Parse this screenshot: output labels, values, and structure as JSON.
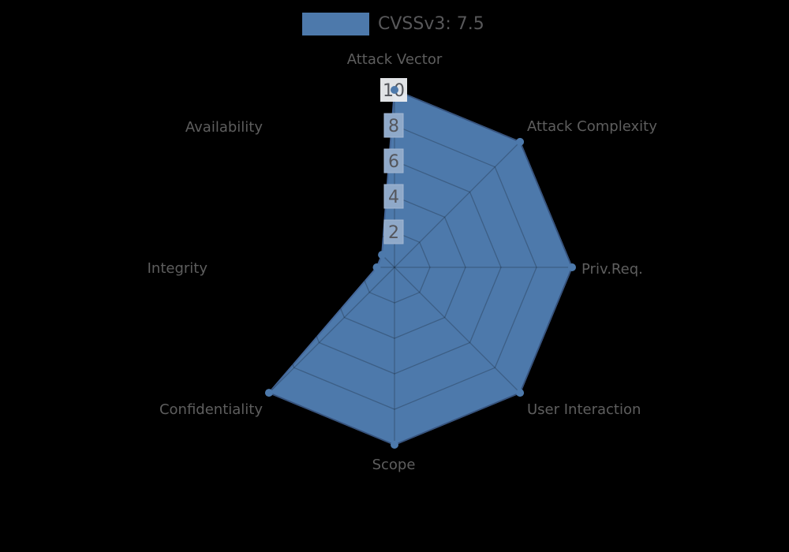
{
  "chart_data": {
    "type": "radar",
    "title": "",
    "legend": {
      "label": "CVSSv3: 7.5",
      "position": "top-center"
    },
    "axes": [
      "Attack Vector",
      "Attack Complexity",
      "Priv.Req.",
      "User Interaction",
      "Scope",
      "Confidentiality",
      "Integrity",
      "Availability"
    ],
    "series": [
      {
        "name": "CVSSv3: 7.5",
        "values": [
          10,
          10,
          10,
          10,
          10,
          10,
          1,
          1
        ],
        "color": "#4d79ab"
      }
    ],
    "radial_ticks": [
      2,
      4,
      6,
      8,
      10
    ],
    "rlim": [
      0,
      10
    ],
    "grid": {
      "shape": "polygon",
      "rings": 5,
      "spokes": 8
    },
    "background": "#000000"
  },
  "colors": {
    "background": "#000000",
    "series_fill": "#4d79ab",
    "series_edge": "#44679a",
    "grid_line": "rgba(0,0,0,0.22)",
    "tick_box_inner": "#8fa9c9",
    "tick_box_inner_border": "#a3b7d2",
    "tick_box_outer": "#edeff2",
    "tick_text": "#54565c",
    "axis_label_text": "#5e5e5e",
    "legend_text": "#58585a"
  }
}
